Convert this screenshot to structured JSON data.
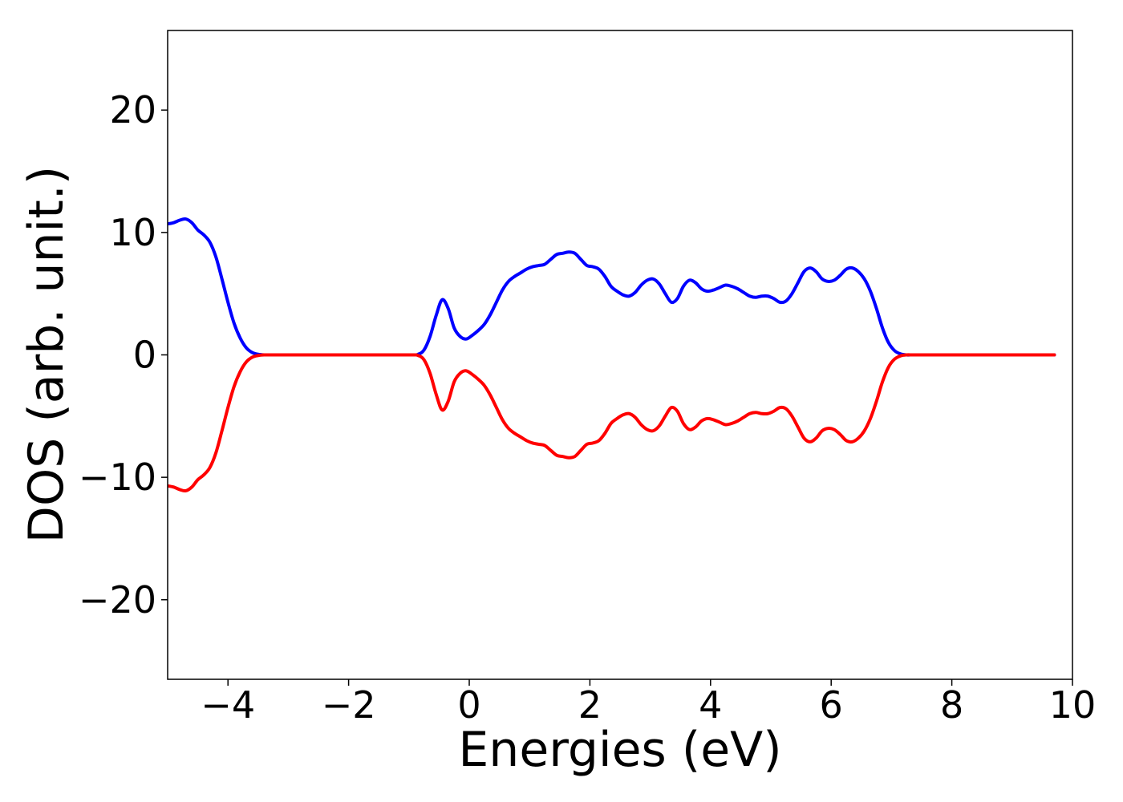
{
  "chart_data": {
    "type": "line",
    "title": "",
    "xlabel": "Energies (eV)",
    "ylabel": "DOS (arb. unit.)",
    "xlim": [
      -5,
      10
    ],
    "ylim": [
      -26.5,
      26.5
    ],
    "xticks": [
      -4,
      -2,
      0,
      2,
      4,
      6,
      8,
      10
    ],
    "yticks": [
      -20,
      -10,
      0,
      10,
      20
    ],
    "grid": false,
    "legend": "none",
    "series": [
      {
        "color": "#0000ff",
        "x": [
          -5.0,
          -4.9,
          -4.8,
          -4.7,
          -4.6,
          -4.5,
          -4.4,
          -4.3,
          -4.2,
          -4.1,
          -4.0,
          -3.9,
          -3.8,
          -3.7,
          -3.6,
          -3.5,
          -3.4,
          -3.3,
          -3.0,
          -2.0,
          -1.0,
          -0.85,
          -0.75,
          -0.65,
          -0.55,
          -0.45,
          -0.35,
          -0.25,
          -0.15,
          -0.05,
          0.05,
          0.15,
          0.25,
          0.35,
          0.45,
          0.55,
          0.65,
          0.75,
          0.85,
          0.95,
          1.05,
          1.15,
          1.25,
          1.35,
          1.45,
          1.55,
          1.65,
          1.75,
          1.85,
          1.95,
          2.05,
          2.15,
          2.25,
          2.35,
          2.45,
          2.55,
          2.65,
          2.75,
          2.85,
          2.95,
          3.05,
          3.15,
          3.25,
          3.35,
          3.45,
          3.55,
          3.65,
          3.75,
          3.85,
          3.95,
          4.05,
          4.15,
          4.25,
          4.35,
          4.45,
          4.55,
          4.65,
          4.75,
          4.85,
          4.95,
          5.05,
          5.15,
          5.25,
          5.35,
          5.45,
          5.55,
          5.65,
          5.75,
          5.85,
          5.95,
          6.05,
          6.15,
          6.25,
          6.35,
          6.45,
          6.55,
          6.65,
          6.75,
          6.85,
          6.95,
          7.05,
          7.15,
          7.25,
          7.35,
          7.5,
          8.0,
          9.0,
          9.7
        ],
        "values": [
          10.7,
          10.8,
          11.0,
          11.1,
          10.8,
          10.2,
          9.8,
          9.2,
          8.0,
          6.2,
          4.3,
          2.6,
          1.4,
          0.6,
          0.2,
          0.05,
          0.0,
          0.0,
          0.0,
          0.0,
          0.0,
          0.05,
          0.4,
          1.5,
          3.2,
          4.5,
          3.8,
          2.2,
          1.5,
          1.3,
          1.6,
          2.0,
          2.5,
          3.3,
          4.3,
          5.3,
          6.0,
          6.4,
          6.7,
          7.0,
          7.2,
          7.3,
          7.4,
          7.8,
          8.2,
          8.3,
          8.4,
          8.3,
          7.8,
          7.3,
          7.2,
          7.0,
          6.4,
          5.6,
          5.2,
          4.9,
          4.8,
          5.1,
          5.7,
          6.1,
          6.2,
          5.8,
          5.0,
          4.3,
          4.6,
          5.6,
          6.1,
          5.9,
          5.4,
          5.2,
          5.3,
          5.5,
          5.7,
          5.6,
          5.4,
          5.1,
          4.8,
          4.7,
          4.8,
          4.8,
          4.6,
          4.3,
          4.4,
          5.0,
          5.9,
          6.8,
          7.1,
          6.8,
          6.2,
          6.0,
          6.1,
          6.5,
          7.0,
          7.1,
          6.8,
          6.2,
          5.2,
          3.8,
          2.2,
          1.0,
          0.35,
          0.08,
          0.0,
          0.0,
          0.0,
          0.0,
          0.0,
          0.0
        ]
      },
      {
        "color": "#ff0000",
        "x": [
          -5.0,
          -4.9,
          -4.8,
          -4.7,
          -4.6,
          -4.5,
          -4.4,
          -4.3,
          -4.2,
          -4.1,
          -4.0,
          -3.9,
          -3.8,
          -3.7,
          -3.6,
          -3.5,
          -3.4,
          -3.3,
          -3.0,
          -2.0,
          -1.0,
          -0.85,
          -0.75,
          -0.65,
          -0.55,
          -0.45,
          -0.35,
          -0.25,
          -0.15,
          -0.05,
          0.05,
          0.15,
          0.25,
          0.35,
          0.45,
          0.55,
          0.65,
          0.75,
          0.85,
          0.95,
          1.05,
          1.15,
          1.25,
          1.35,
          1.45,
          1.55,
          1.65,
          1.75,
          1.85,
          1.95,
          2.05,
          2.15,
          2.25,
          2.35,
          2.45,
          2.55,
          2.65,
          2.75,
          2.85,
          2.95,
          3.05,
          3.15,
          3.25,
          3.35,
          3.45,
          3.55,
          3.65,
          3.75,
          3.85,
          3.95,
          4.05,
          4.15,
          4.25,
          4.35,
          4.45,
          4.55,
          4.65,
          4.75,
          4.85,
          4.95,
          5.05,
          5.15,
          5.25,
          5.35,
          5.45,
          5.55,
          5.65,
          5.75,
          5.85,
          5.95,
          6.05,
          6.15,
          6.25,
          6.35,
          6.45,
          6.55,
          6.65,
          6.75,
          6.85,
          6.95,
          7.05,
          7.15,
          7.25,
          7.35,
          7.5,
          8.0,
          9.0,
          9.7
        ],
        "values": [
          -10.7,
          -10.8,
          -11.0,
          -11.1,
          -10.8,
          -10.2,
          -9.8,
          -9.2,
          -8.0,
          -6.2,
          -4.3,
          -2.6,
          -1.4,
          -0.6,
          -0.2,
          -0.05,
          0.0,
          0.0,
          0.0,
          0.0,
          0.0,
          -0.05,
          -0.4,
          -1.5,
          -3.2,
          -4.5,
          -3.8,
          -2.2,
          -1.5,
          -1.3,
          -1.6,
          -2.0,
          -2.5,
          -3.3,
          -4.3,
          -5.3,
          -6.0,
          -6.4,
          -6.7,
          -7.0,
          -7.2,
          -7.3,
          -7.4,
          -7.8,
          -8.2,
          -8.3,
          -8.4,
          -8.3,
          -7.8,
          -7.3,
          -7.2,
          -7.0,
          -6.4,
          -5.6,
          -5.2,
          -4.9,
          -4.8,
          -5.1,
          -5.7,
          -6.1,
          -6.2,
          -5.8,
          -5.0,
          -4.3,
          -4.6,
          -5.6,
          -6.1,
          -5.9,
          -5.4,
          -5.2,
          -5.3,
          -5.5,
          -5.7,
          -5.6,
          -5.4,
          -5.1,
          -4.8,
          -4.7,
          -4.8,
          -4.8,
          -4.6,
          -4.3,
          -4.4,
          -5.0,
          -5.9,
          -6.8,
          -7.1,
          -6.8,
          -6.2,
          -6.0,
          -6.1,
          -6.5,
          -7.0,
          -7.1,
          -6.8,
          -6.2,
          -5.2,
          -3.8,
          -2.2,
          -1.0,
          -0.35,
          -0.08,
          0.0,
          0.0,
          0.0,
          0.0,
          0.0,
          0.0
        ]
      }
    ]
  },
  "labels": {
    "xticks": [
      "−4",
      "−2",
      "0",
      "2",
      "4",
      "6",
      "8",
      "10"
    ],
    "yticks": [
      "−20",
      "−10",
      "0",
      "10",
      "20"
    ]
  }
}
